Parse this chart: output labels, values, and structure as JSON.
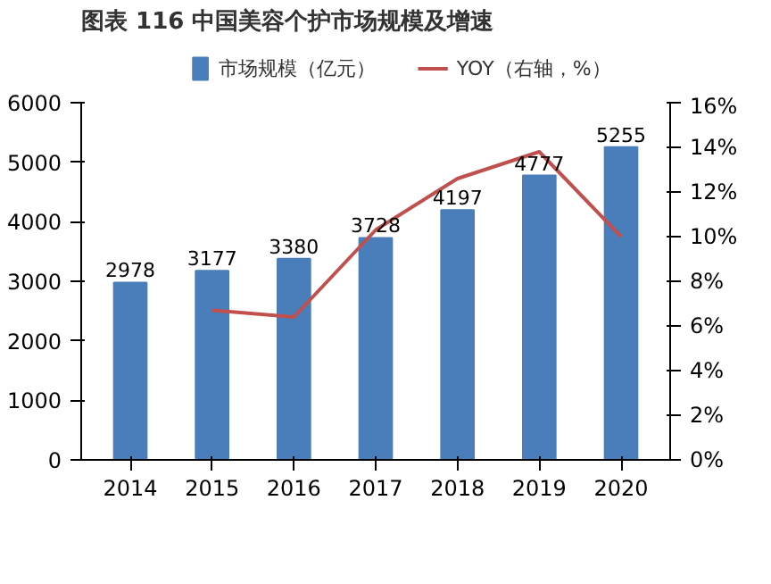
{
  "chart_data": {
    "type": "bar",
    "title": "图表 116 中国美容个护市场规模及增速",
    "categories": [
      "2014",
      "2015",
      "2016",
      "2017",
      "2018",
      "2019",
      "2020"
    ],
    "series": [
      {
        "name": "市场规模（亿元）",
        "color": "#4a7ebb",
        "values": [
          2978,
          3177,
          3380,
          3728,
          4197,
          4777,
          5255
        ],
        "value_labels": [
          "2978",
          "3177",
          "3380",
          "3728",
          "4197",
          "4777",
          "5255"
        ]
      },
      {
        "name": "YOY（右轴，%）",
        "type": "line",
        "axis": "y2",
        "color": "#c0504d",
        "values": [
          null,
          6.7,
          6.4,
          10.3,
          12.6,
          13.8,
          10.0
        ]
      }
    ],
    "ylim": [
      0,
      6000
    ],
    "yticks": [
      0,
      1000,
      2000,
      3000,
      4000,
      5000,
      6000
    ],
    "y2lim": [
      0,
      16
    ],
    "y2ticks": [
      {
        "value": 0,
        "label": "0%"
      },
      {
        "value": 2,
        "label": "2%"
      },
      {
        "value": 4,
        "label": "4%"
      },
      {
        "value": 6,
        "label": "6%"
      },
      {
        "value": 8,
        "label": "8%"
      },
      {
        "value": 10,
        "label": "10%"
      },
      {
        "value": 12,
        "label": "12%"
      },
      {
        "value": 14,
        "label": "14%"
      },
      {
        "value": 16,
        "label": "16%"
      }
    ],
    "legend": "top",
    "grid": false,
    "marker": "none",
    "line_style": "solid"
  }
}
